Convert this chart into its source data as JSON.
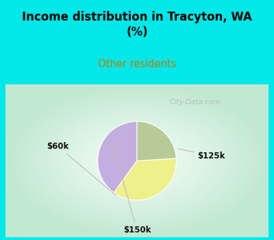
{
  "title": "Income distribution in Tracyton, WA\n(%)",
  "subtitle": "Other residents",
  "title_color": "#000000",
  "subtitle_color": "#cc7700",
  "background_top": "#00e8e8",
  "slices": [
    {
      "label": "$125k",
      "value": 40,
      "color": "#c3aee0"
    },
    {
      "label": "$60k",
      "value": 36,
      "color": "#eef08a"
    },
    {
      "label": "$150k",
      "value": 24,
      "color": "#b8cb96"
    }
  ],
  "startangle": 90,
  "watermark": "City-Data.com",
  "chart_bg_corner": "#c2e8d0",
  "chart_bg_center": "#f0faf5"
}
